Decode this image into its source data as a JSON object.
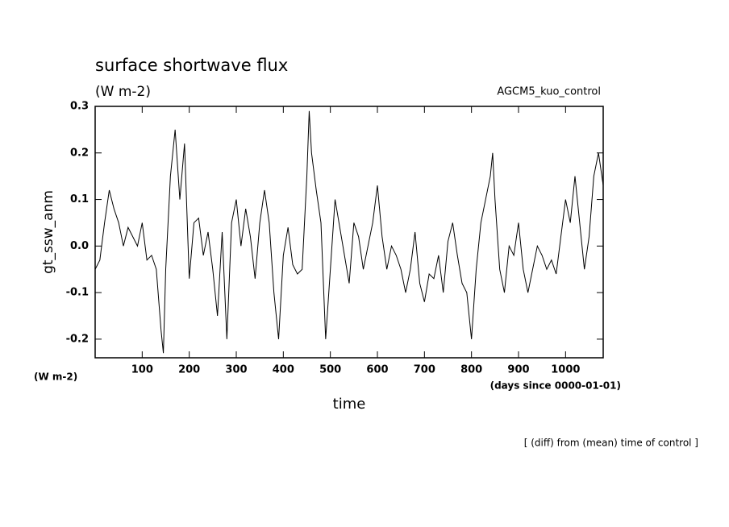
{
  "chart_data": {
    "type": "line",
    "title": "surface shortwave flux",
    "subtitle": "(W m-2)",
    "annotation": "AGCM5_kuo_control",
    "y_label": "gt_ssw_anm",
    "y_units": "(W m-2)",
    "x_label": "time",
    "x_units": "(days since 0000-01-01)",
    "footer": "[ (diff) from (mean) time of control ]",
    "xlim": [
      0,
      1080
    ],
    "ylim": [
      -0.24,
      0.3
    ],
    "xticks": [
      100,
      200,
      300,
      400,
      500,
      600,
      700,
      800,
      900,
      1000
    ],
    "yticks": [
      0.3,
      0.2,
      0.1,
      {
        "value": 0,
        "label": "0.0"
      },
      -0.1,
      -0.2
    ],
    "series": [
      {
        "color": "#000000",
        "x": [
          0,
          10,
          20,
          30,
          40,
          50,
          60,
          70,
          80,
          90,
          100,
          110,
          120,
          130,
          140,
          145,
          150,
          160,
          170,
          180,
          190,
          200,
          210,
          220,
          230,
          240,
          250,
          260,
          270,
          280,
          290,
          300,
          310,
          320,
          330,
          340,
          350,
          360,
          370,
          380,
          390,
          400,
          410,
          420,
          430,
          440,
          450,
          455,
          460,
          470,
          480,
          490,
          500,
          510,
          520,
          530,
          540,
          550,
          560,
          570,
          580,
          590,
          600,
          610,
          620,
          630,
          640,
          650,
          660,
          670,
          680,
          690,
          700,
          710,
          720,
          730,
          740,
          750,
          760,
          770,
          780,
          790,
          800,
          810,
          820,
          830,
          840,
          845,
          850,
          860,
          870,
          880,
          890,
          900,
          910,
          920,
          930,
          940,
          950,
          960,
          970,
          980,
          990,
          1000,
          1010,
          1020,
          1030,
          1040,
          1050,
          1060,
          1070,
          1080
        ],
        "values": [
          -0.05,
          -0.03,
          0.05,
          0.12,
          0.08,
          0.05,
          0.0,
          0.04,
          0.02,
          0.0,
          0.05,
          -0.03,
          -0.02,
          -0.05,
          -0.18,
          -0.23,
          -0.05,
          0.15,
          0.25,
          0.1,
          0.22,
          -0.07,
          0.05,
          0.06,
          -0.02,
          0.03,
          -0.05,
          -0.15,
          0.03,
          -0.2,
          0.05,
          0.1,
          0.0,
          0.08,
          0.02,
          -0.07,
          0.05,
          0.12,
          0.05,
          -0.1,
          -0.2,
          -0.02,
          0.04,
          -0.04,
          -0.06,
          -0.05,
          0.15,
          0.29,
          0.2,
          0.12,
          0.05,
          -0.2,
          -0.05,
          0.1,
          0.04,
          -0.02,
          -0.08,
          0.05,
          0.02,
          -0.05,
          0.0,
          0.05,
          0.13,
          0.02,
          -0.05,
          0.0,
          -0.02,
          -0.05,
          -0.1,
          -0.05,
          0.03,
          -0.08,
          -0.12,
          -0.06,
          -0.07,
          -0.02,
          -0.1,
          0.01,
          0.05,
          -0.02,
          -0.08,
          -0.1,
          -0.2,
          -0.05,
          0.05,
          0.1,
          0.15,
          0.2,
          0.1,
          -0.05,
          -0.1,
          0.0,
          -0.02,
          0.05,
          -0.05,
          -0.1,
          -0.05,
          0.0,
          -0.02,
          -0.05,
          -0.03,
          -0.06,
          0.02,
          0.1,
          0.05,
          0.15,
          0.05,
          -0.05,
          0.02,
          0.15,
          0.2,
          0.13
        ]
      }
    ]
  }
}
